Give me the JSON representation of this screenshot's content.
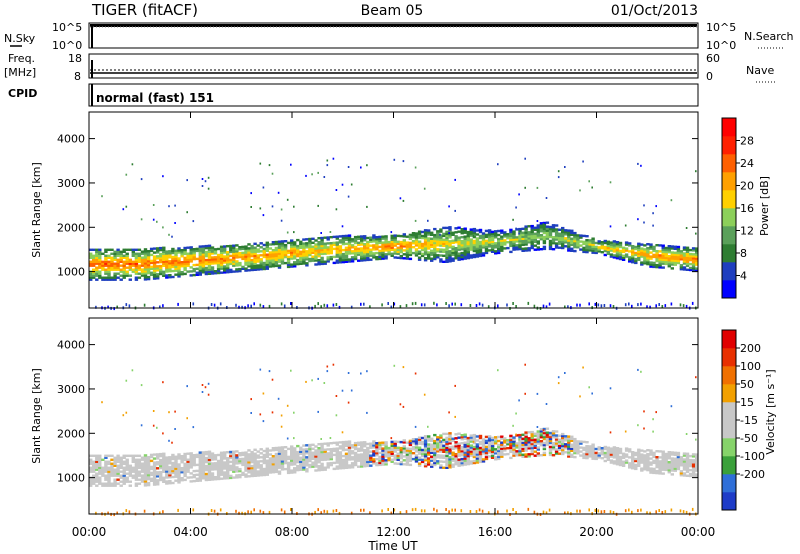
{
  "header": {
    "title": "TIGER (fitACF)",
    "beam": "Beam 05",
    "date": "01/Oct/2013"
  },
  "status_panels": {
    "nsky": {
      "label": "N.Sky",
      "right_label": "N.Search",
      "ticks_left": [
        "10^5",
        "10^0"
      ],
      "ticks_right": [
        "10^5",
        "10^0"
      ]
    },
    "freq": {
      "label_line1": "Freq.",
      "label_line2": "[MHz]",
      "right_label": "Nave",
      "ticks_left": [
        "18",
        "8"
      ],
      "ticks_right": [
        "60",
        "0"
      ]
    },
    "cpid": {
      "label": "CPID",
      "value": "normal (fast) 151"
    }
  },
  "colors": {
    "power_scale": [
      "#0000ff",
      "#1f3fbf",
      "#2e7d32",
      "#5aa05a",
      "#8ccf5a",
      "#ffd000",
      "#ffa000",
      "#ff6000",
      "#ff2000",
      "#ff0000"
    ],
    "velocity_scale": [
      "#1e3cc8",
      "#2f6fd8",
      "#3aa03a",
      "#86d36a",
      "#c8c8c8",
      "#c8c8c8",
      "#f2a000",
      "#f07000",
      "#e83000",
      "#e00000"
    ]
  },
  "chart_data": [
    {
      "type": "heatmap",
      "name": "power",
      "ylabel": "Slant Range [km]",
      "ylim": [
        180,
        4600
      ],
      "yticks": [
        "1000",
        "2000",
        "3000",
        "4000"
      ],
      "ytick_values": [
        1000,
        2000,
        3000,
        4000
      ],
      "xlim": [
        0,
        24
      ],
      "colorbar": {
        "label": "Power [dB]",
        "range": [
          0,
          32
        ],
        "ticks": [
          "28",
          "24",
          "20",
          "16",
          "12",
          "8",
          "4"
        ],
        "tick_values": [
          28,
          24,
          20,
          16,
          12,
          8,
          4
        ]
      },
      "bands": [
        {
          "start": 0,
          "end": 24,
          "lower": [
            800,
            800,
            900,
            1000,
            1100,
            1200,
            1300,
            1200,
            1400,
            1500,
            1400,
            1100,
            1000
          ],
          "upper": [
            1500,
            1500,
            1550,
            1600,
            1700,
            1800,
            1800,
            2000,
            1900,
            2100,
            1700,
            1600,
            1500
          ],
          "core_power": [
            26,
            25,
            24,
            23,
            22,
            20,
            24,
            18,
            16,
            14,
            18,
            22,
            24
          ]
        }
      ]
    },
    {
      "type": "heatmap",
      "name": "velocity",
      "ylabel": "Slant Range [km]",
      "ylim": [
        180,
        4600
      ],
      "yticks": [
        "1000",
        "2000",
        "3000",
        "4000"
      ],
      "ytick_values": [
        1000,
        2000,
        3000,
        4000
      ],
      "xlim": [
        0,
        24
      ],
      "xticks": [
        "00:00",
        "04:00",
        "08:00",
        "12:00",
        "16:00",
        "20:00",
        "00:00"
      ],
      "xtick_values": [
        0,
        4,
        8,
        12,
        16,
        20,
        24
      ],
      "xlabel": "Time UT",
      "colorbar": {
        "label": "Velocity [m s⁻¹]",
        "ticks": [
          "200",
          "100",
          "50",
          "15",
          "-15",
          "-50",
          "-100",
          "-200"
        ]
      }
    }
  ]
}
